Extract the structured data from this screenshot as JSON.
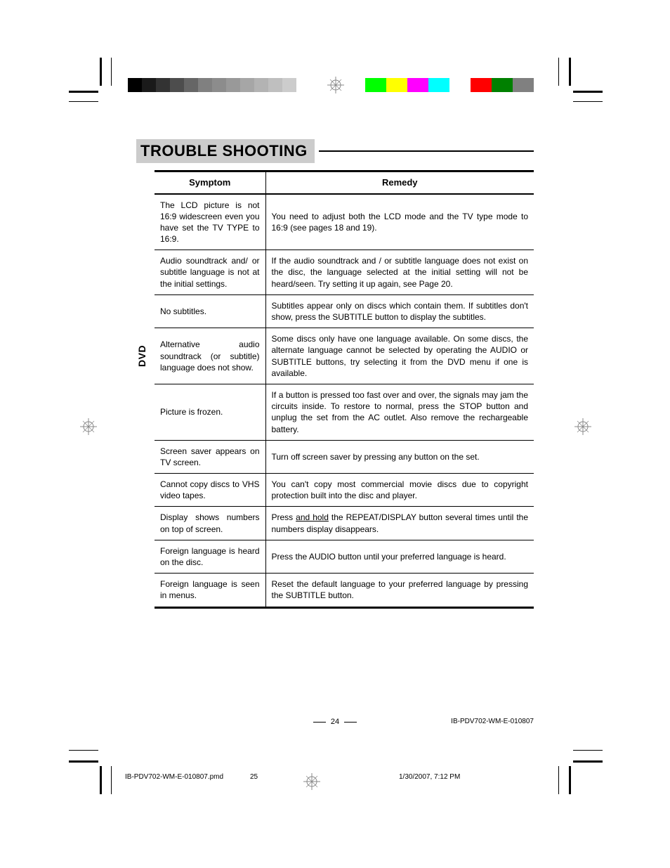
{
  "title": "TROUBLE SHOOTING",
  "side_label": "DVD",
  "table": {
    "headers": [
      "Symptom",
      "Remedy"
    ],
    "rows": [
      {
        "symptom": "The LCD picture is not 16:9 widescreen even you have set the TV TYPE to 16:9.",
        "remedy": "You need to adjust both the LCD mode and the TV type mode to 16:9 (see pages 18 and 19)."
      },
      {
        "symptom": "Audio soundtrack and/ or subtitle language is not at the initial settings.",
        "remedy": "If the audio soundtrack and / or subtitle language does not exist on the disc, the language selected at the initial setting will not be heard/seen. Try setting it up again, see Page 20."
      },
      {
        "symptom": "No subtitles.",
        "remedy": "Subtitles appear only on discs which contain them. If subtitles don't show, press the SUBTITLE button to display the subtitles."
      },
      {
        "symptom": "Alternative audio soundtrack (or subtitle) language does not show.",
        "remedy": "Some discs only have one language available. On some discs, the alternate language cannot be selected by operating the AUDIO or SUBTITLE buttons, try selecting it from the DVD menu if one is available."
      },
      {
        "symptom": "Picture is frozen.",
        "remedy": "If a button is pressed too fast over and over, the signals may jam the circuits inside. To restore to normal, press the STOP button and unplug the set from the AC outlet. Also remove the rechargeable battery."
      },
      {
        "symptom": "Screen saver appears on TV screen.",
        "remedy": "Turn off screen saver by pressing any button on the set."
      },
      {
        "symptom": "Cannot copy discs to VHS video tapes.",
        "remedy": "You can't copy most commercial movie discs due to copyright protection built into the disc and player."
      },
      {
        "symptom": "Display shows numbers on top of screen.",
        "remedy_html": "Press <span class=\"underline\">and hold</span> the REPEAT/DISPLAY button several times until the numbers display disappears."
      },
      {
        "symptom": "Foreign language is heard on the disc.",
        "remedy": "Press the AUDIO button until your preferred language is heard."
      },
      {
        "symptom": "Foreign language is seen in menus.",
        "remedy": "Reset the default language to your preferred language by pressing the SUBTITLE button."
      }
    ]
  },
  "footer": {
    "page_number": "24",
    "doc_id": "IB-PDV702-WM-E-010807"
  },
  "print_footer": {
    "file": "IB-PDV702-WM-E-010807.pmd",
    "page": "25",
    "timestamp": "1/30/2007, 7:12 PM"
  },
  "colorbars": {
    "gray_start": 182,
    "gray_widths": [
      20,
      20,
      20,
      20,
      20,
      20,
      20,
      20,
      20,
      20,
      20,
      20
    ],
    "gray_shades": [
      "#000000",
      "#1a1a1a",
      "#333333",
      "#4d4d4d",
      "#666666",
      "#808080",
      "#8c8c8c",
      "#999999",
      "#a6a6a6",
      "#b3b3b3",
      "#bfbfbf",
      "#cccccc"
    ],
    "color_start": 520,
    "colors": [
      "#00ff00",
      "#ffff00",
      "#ff00ff",
      "#00ffff",
      "#ffffff",
      "#ff0000",
      "#008000",
      "#808080"
    ],
    "color_width": 30
  }
}
